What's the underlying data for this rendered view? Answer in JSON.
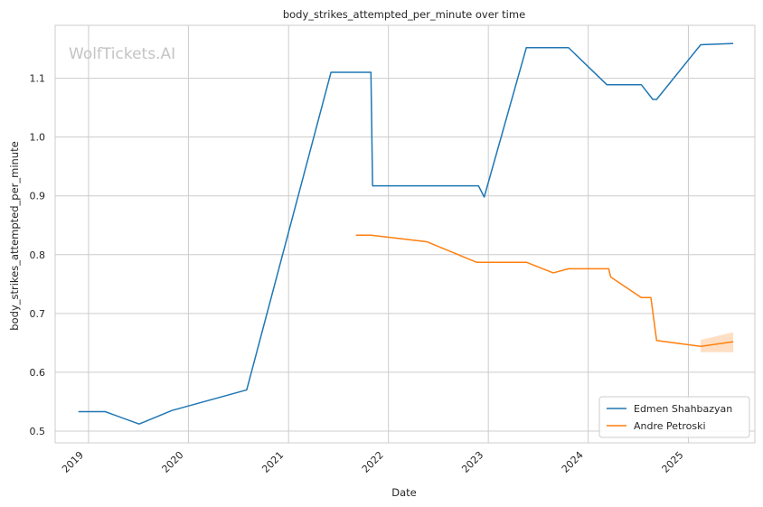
{
  "chart_data": {
    "type": "line",
    "title": "body_strikes_attempted_per_minute over time",
    "xlabel": "Date",
    "ylabel": "body_strikes_attempted_per_minute",
    "watermark": "WolfTickets.AI",
    "x_ticks": [
      "2019",
      "2020",
      "2021",
      "2022",
      "2023",
      "2024",
      "2025"
    ],
    "y_ticks": [
      0.5,
      0.6,
      0.7,
      0.8,
      0.9,
      1.0,
      1.1
    ],
    "xlim": [
      "2018-09-01",
      "2025-09-01"
    ],
    "ylim": [
      0.48,
      1.19
    ],
    "grid": true,
    "legend_position": "lower-right",
    "series": [
      {
        "name": "Edmen Shahbazyan",
        "color": "#1f77b4",
        "points": [
          {
            "x": "2018-11-25",
            "y": 0.533
          },
          {
            "x": "2019-03-03",
            "y": 0.533
          },
          {
            "x": "2019-07-05",
            "y": 0.512
          },
          {
            "x": "2019-11-02",
            "y": 0.535
          },
          {
            "x": "2020-08-01",
            "y": 0.57
          },
          {
            "x": "2021-06-05",
            "y": 1.11
          },
          {
            "x": "2021-10-29",
            "y": 1.11
          },
          {
            "x": "2021-11-04",
            "y": 0.917
          },
          {
            "x": "2022-11-26",
            "y": 0.917
          },
          {
            "x": "2022-12-17",
            "y": 0.898
          },
          {
            "x": "2023-05-20",
            "y": 1.152
          },
          {
            "x": "2023-10-21",
            "y": 1.152
          },
          {
            "x": "2024-03-09",
            "y": 1.089
          },
          {
            "x": "2024-07-13",
            "y": 1.089
          },
          {
            "x": "2024-08-24",
            "y": 1.064
          },
          {
            "x": "2024-09-07",
            "y": 1.064
          },
          {
            "x": "2025-02-15",
            "y": 1.157
          },
          {
            "x": "2025-06-14",
            "y": 1.159
          }
        ]
      },
      {
        "name": "Andre Petroski",
        "color": "#ff7f0e",
        "points": [
          {
            "x": "2021-09-04",
            "y": 0.833
          },
          {
            "x": "2021-10-30",
            "y": 0.833
          },
          {
            "x": "2022-05-21",
            "y": 0.822
          },
          {
            "x": "2022-11-19",
            "y": 0.787
          },
          {
            "x": "2023-05-20",
            "y": 0.787
          },
          {
            "x": "2023-08-26",
            "y": 0.769
          },
          {
            "x": "2023-10-21",
            "y": 0.776
          },
          {
            "x": "2024-03-16",
            "y": 0.776
          },
          {
            "x": "2024-03-23",
            "y": 0.762
          },
          {
            "x": "2024-07-13",
            "y": 0.727
          },
          {
            "x": "2024-08-17",
            "y": 0.727
          },
          {
            "x": "2024-09-07",
            "y": 0.654
          },
          {
            "x": "2025-02-15",
            "y": 0.644
          },
          {
            "x": "2025-06-14",
            "y": 0.652
          }
        ],
        "confidence_band": [
          {
            "x": "2025-02-15",
            "low": 0.634,
            "high": 0.655
          },
          {
            "x": "2025-06-14",
            "low": 0.634,
            "high": 0.668
          }
        ]
      }
    ]
  }
}
